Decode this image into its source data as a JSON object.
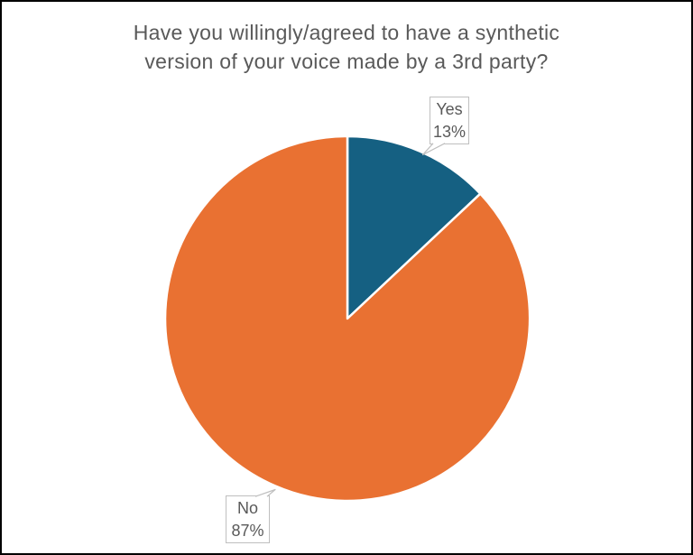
{
  "page": {
    "background": "#FFFFFF",
    "border_color": "#000000"
  },
  "chart_data": {
    "type": "pie",
    "title": "Have you willingly/agreed to have a synthetic version of your voice made by a 3rd party?",
    "title_color": "#595959",
    "categories": [
      "Yes",
      "No"
    ],
    "values": [
      13,
      87
    ],
    "unit": "%",
    "colors": [
      "#156082",
      "#E97132"
    ],
    "slice_separator_color": "#FFFFFF",
    "legend": "none",
    "label_style": {
      "text_color": "#595959",
      "box_fill": "#FFFFFF",
      "box_border_color": "#BFBFBF"
    },
    "data_labels": [
      {
        "category": "Yes",
        "value_text": "13%"
      },
      {
        "category": "No",
        "value_text": "87%"
      }
    ]
  }
}
